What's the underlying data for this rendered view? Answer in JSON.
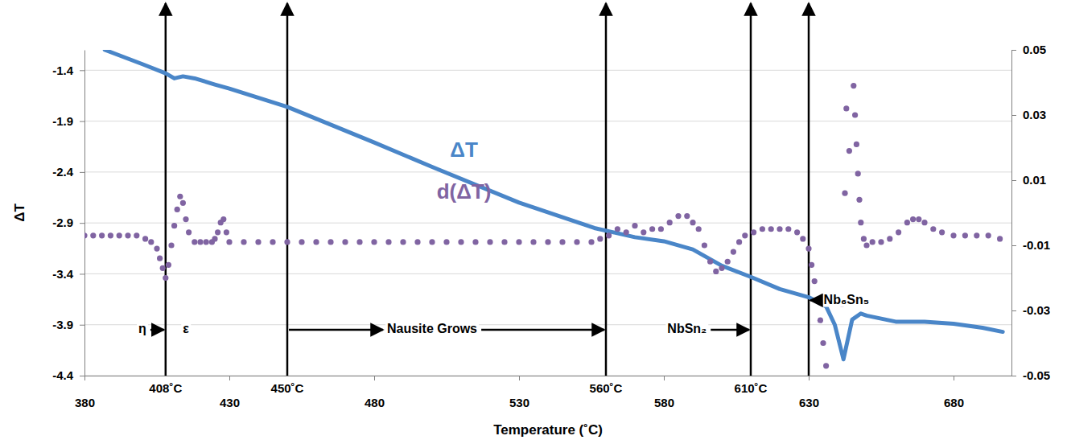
{
  "chart_data": {
    "type": "line",
    "x_label": "Temperature (˚C)",
    "y_label": "ΔT",
    "xlim": [
      380,
      700
    ],
    "xticks": [
      380,
      430,
      480,
      530,
      580,
      630,
      680
    ],
    "ylim": [
      -4.4,
      -1.2
    ],
    "yticks": [
      -4.4,
      -3.9,
      -3.4,
      -2.9,
      -2.4,
      -1.9,
      -1.4
    ],
    "y2lim": [
      -0.05,
      0.05
    ],
    "y2ticks": [
      -0.05,
      -0.03,
      -0.01,
      0.01,
      0.03,
      0.05
    ],
    "grid": true,
    "series": [
      {
        "name": "ΔT",
        "type": "line",
        "color": "#4a86c8",
        "label_x": 511,
        "label_y": -2.2,
        "x": [
          387,
          400,
          408,
          411,
          414,
          418,
          425,
          430,
          450,
          480,
          500,
          530,
          556,
          570,
          580,
          590,
          600,
          610,
          620,
          630,
          636,
          639,
          642,
          645,
          648,
          650,
          660,
          670,
          680,
          690,
          697
        ],
        "values": [
          -1.2,
          -1.34,
          -1.43,
          -1.48,
          -1.46,
          -1.48,
          -1.54,
          -1.58,
          -1.76,
          -2.11,
          -2.35,
          -2.7,
          -2.95,
          -3.04,
          -3.08,
          -3.16,
          -3.32,
          -3.43,
          -3.55,
          -3.63,
          -3.72,
          -3.9,
          -4.24,
          -3.85,
          -3.79,
          -3.81,
          -3.87,
          -3.87,
          -3.89,
          -3.93,
          -3.97
        ]
      },
      {
        "name": "d(ΔT)",
        "type": "scatter",
        "marker": "circle",
        "axis": "y2",
        "color": "#8064a2",
        "label_x": 511,
        "label_y": 0.006,
        "x": [
          380,
          383,
          386,
          389,
          392,
          395,
          398,
          401,
          403,
          405,
          406,
          407,
          408,
          409,
          410,
          411,
          412,
          413,
          414,
          415,
          416,
          418,
          420,
          422,
          424,
          425,
          426,
          427,
          428,
          429,
          430,
          435,
          440,
          445,
          450,
          455,
          460,
          465,
          470,
          475,
          480,
          485,
          490,
          495,
          500,
          505,
          510,
          515,
          520,
          525,
          530,
          535,
          540,
          545,
          550,
          555,
          558,
          561,
          564,
          567,
          570,
          573,
          576,
          579,
          582,
          585,
          588,
          590,
          592,
          594,
          596,
          598,
          600,
          602,
          604,
          606,
          608,
          611,
          614,
          617,
          620,
          623,
          626,
          628,
          630,
          631,
          632,
          633,
          634,
          635,
          636,
          641.5,
          642.5,
          643,
          644,
          645.5,
          646,
          646.5,
          647,
          647.5,
          648,
          649,
          650,
          652,
          655,
          658,
          661,
          664,
          666,
          668,
          670,
          673,
          676,
          680,
          684,
          688,
          692,
          696
        ],
        "values": [
          -0.007,
          -0.007,
          -0.007,
          -0.007,
          -0.007,
          -0.007,
          -0.007,
          -0.008,
          -0.009,
          -0.011,
          -0.014,
          -0.017,
          -0.02,
          -0.016,
          -0.01,
          -0.004,
          0.001,
          0.005,
          0.003,
          -0.002,
          -0.006,
          -0.009,
          -0.009,
          -0.009,
          -0.009,
          -0.008,
          -0.006,
          -0.003,
          -0.002,
          -0.006,
          -0.009,
          -0.009,
          -0.009,
          -0.009,
          -0.009,
          -0.009,
          -0.009,
          -0.009,
          -0.009,
          -0.009,
          -0.009,
          -0.009,
          -0.009,
          -0.009,
          -0.009,
          -0.009,
          -0.009,
          -0.009,
          -0.009,
          -0.009,
          -0.009,
          -0.009,
          -0.009,
          -0.009,
          -0.009,
          -0.009,
          -0.008,
          -0.007,
          -0.005,
          -0.006,
          -0.004,
          -0.006,
          -0.005,
          -0.005,
          -0.003,
          -0.001,
          -0.001,
          -0.003,
          -0.005,
          -0.01,
          -0.015,
          -0.018,
          -0.017,
          -0.015,
          -0.012,
          -0.009,
          -0.007,
          -0.006,
          -0.005,
          -0.005,
          -0.005,
          -0.005,
          -0.006,
          -0.008,
          -0.011,
          -0.016,
          -0.021,
          -0.027,
          -0.033,
          -0.04,
          -0.047,
          -0.028,
          0.006,
          0.032,
          0.019,
          0.039,
          0.03,
          0.021,
          0.012,
          0.004,
          -0.003,
          -0.008,
          -0.01,
          -0.009,
          -0.009,
          -0.008,
          -0.006,
          -0.003,
          -0.002,
          -0.002,
          -0.003,
          -0.005,
          -0.006,
          -0.007,
          -0.007,
          -0.007,
          -0.007,
          -0.008
        ]
      }
    ],
    "vlines": [
      {
        "value": 408,
        "label": "408˚C"
      },
      {
        "value": 450,
        "label": "450˚C"
      },
      {
        "value": 560,
        "label": "560˚C"
      },
      {
        "value": 610,
        "label": "610˚C"
      },
      {
        "value": 630
      }
    ],
    "annotations": [
      {
        "text": "η",
        "x": 400,
        "y": -3.95,
        "arrow_to": 408
      },
      {
        "text": "ε",
        "x": 415,
        "y": -3.95
      },
      {
        "text": "Nausite Grows",
        "x": 500,
        "y": -3.95,
        "arrow_from": 450,
        "arrow_to": 560
      },
      {
        "text": "NbSn₂",
        "x": 588,
        "y": -3.95,
        "arrow_to": 610
      },
      {
        "text": "Nb₆Sn₅",
        "x": 643,
        "y": -3.66,
        "arrow_to": 630
      }
    ]
  }
}
